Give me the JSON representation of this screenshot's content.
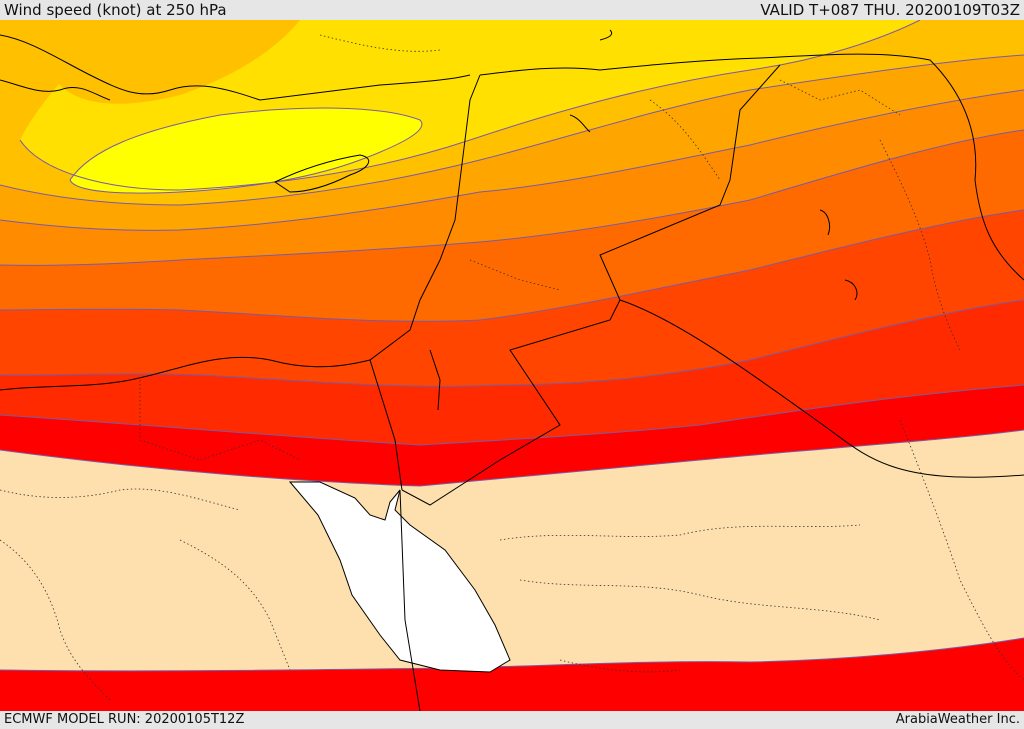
{
  "header": {
    "title": "Wind speed (knot) at 250 hPa",
    "valid": "VALID T+087 THU. 20200109T03Z"
  },
  "footer": {
    "model_run": "ECMWF MODEL RUN: 20200105T12Z",
    "credit": "ArabiaWeather Inc."
  },
  "colors": {
    "band_yellow_bright": "#ffff00",
    "band_yellow": "#ffe000",
    "band_gold": "#ffc000",
    "band_orange_light": "#ffa500",
    "band_orange": "#ff8c00",
    "band_orange_dark": "#ff6a00",
    "band_red_orange": "#ff4500",
    "band_red_light": "#ff2a00",
    "band_red": "#ff0000",
    "low_wind": "#fde0ad",
    "sea": "#ffffff",
    "border": "#000000",
    "contour": "#7a5aa8"
  }
}
